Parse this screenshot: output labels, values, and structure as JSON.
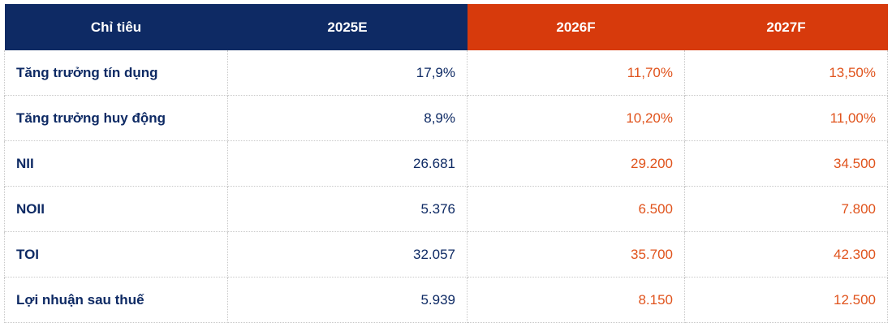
{
  "table": {
    "headers": [
      "Chỉ tiêu",
      "2025E",
      "2026F",
      "2027F"
    ],
    "rows": [
      {
        "label": "Tăng trưởng tín dụng",
        "v2025": "17,9%",
        "v2026": "11,70%",
        "v2027": "13,50%"
      },
      {
        "label": "Tăng trưởng huy động",
        "v2025": "8,9%",
        "v2026": "10,20%",
        "v2027": "11,00%"
      },
      {
        "label": "NII",
        "v2025": "26.681",
        "v2026": "29.200",
        "v2027": "34.500"
      },
      {
        "label": "NOII",
        "v2025": "5.376",
        "v2026": "6.500",
        "v2027": "7.800"
      },
      {
        "label": "TOI",
        "v2025": "32.057",
        "v2026": "35.700",
        "v2027": "42.300"
      },
      {
        "label": "Lợi nhuận sau thuế",
        "v2025": "5.939",
        "v2026": "8.150",
        "v2027": "12.500"
      }
    ]
  },
  "colors": {
    "header_navy": "#0e2a64",
    "header_red": "#d73a0c",
    "label_text": "#0e2a64",
    "forecast_text": "#e0531c"
  }
}
